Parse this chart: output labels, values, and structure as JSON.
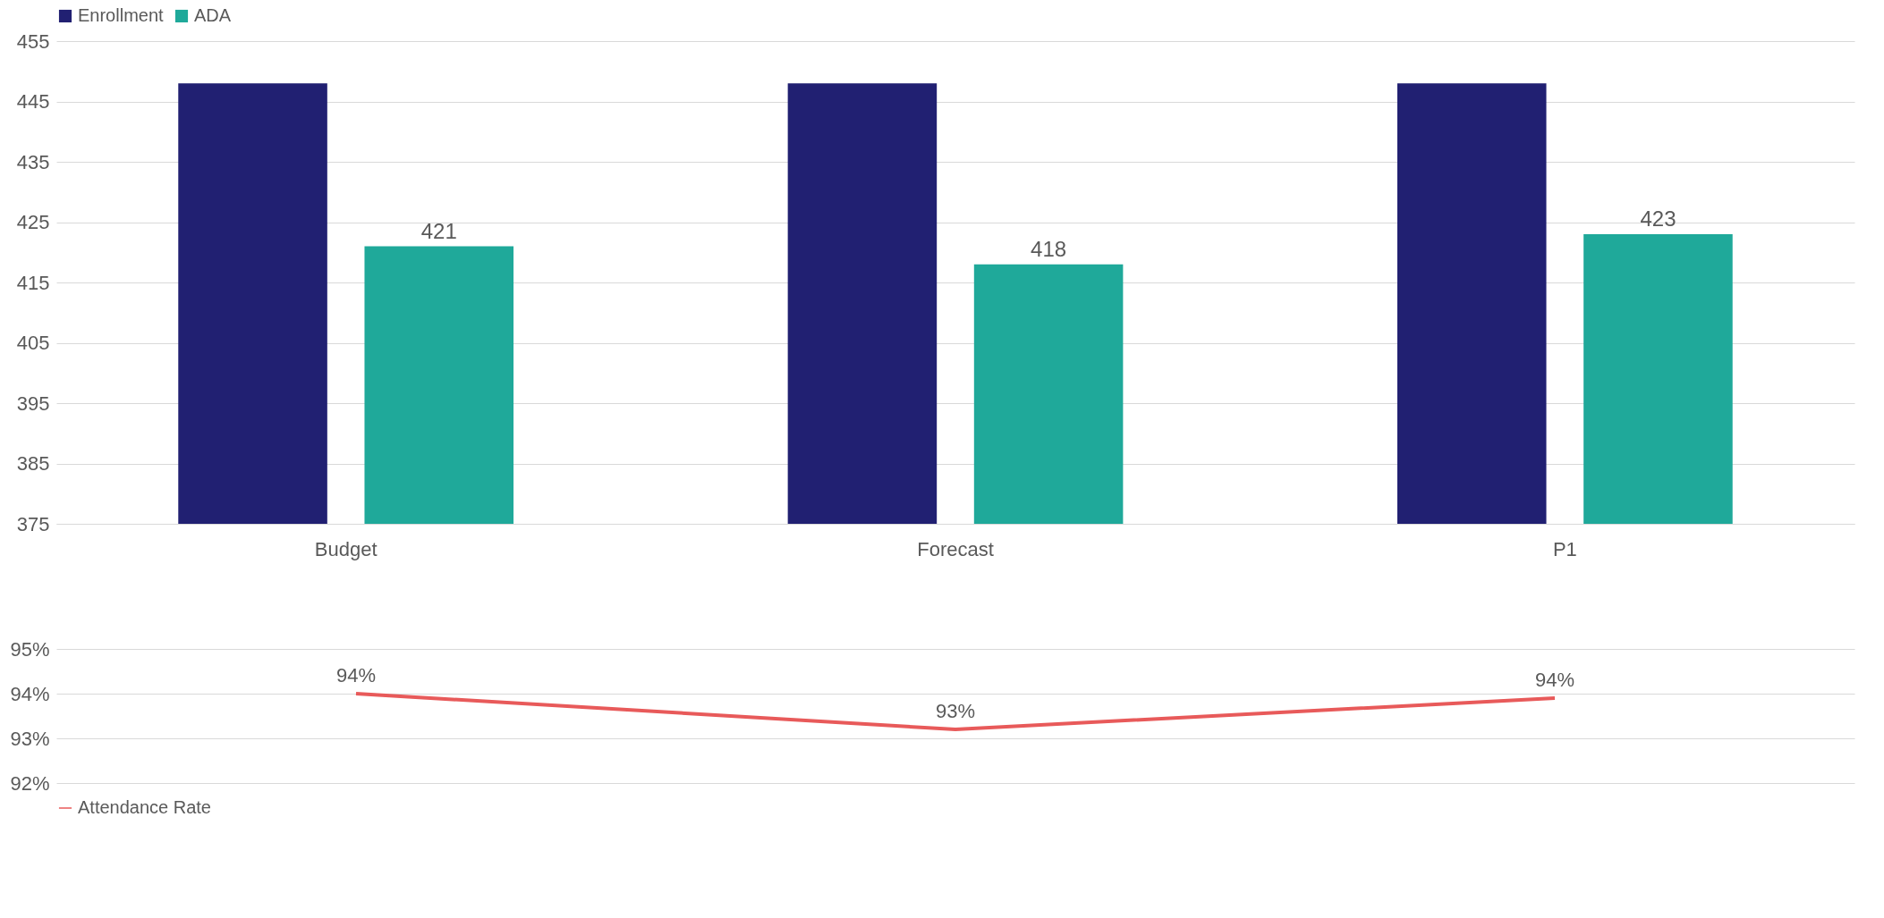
{
  "chart_data": [
    {
      "type": "bar",
      "categories": [
        "Budget",
        "Forecast",
        "P1"
      ],
      "ylim": [
        375,
        455
      ],
      "yticks": [
        375,
        385,
        395,
        405,
        415,
        425,
        435,
        445,
        455
      ],
      "grid": "y",
      "legend": "top",
      "series": [
        {
          "name": "Enrollment",
          "color": "#212072",
          "values": [
            448,
            448,
            448
          ]
        },
        {
          "name": "ADA",
          "color": "#1fa99a",
          "values": [
            421,
            418,
            423
          ],
          "value_labels": [
            "421",
            "418",
            "423"
          ]
        }
      ]
    },
    {
      "type": "line",
      "categories": [
        null,
        null,
        null
      ],
      "ylim": [
        92,
        95
      ],
      "yticks": [
        {
          "value": 92,
          "label": "92%"
        },
        {
          "value": 93,
          "label": "93%"
        },
        {
          "value": 94,
          "label": "94%"
        },
        {
          "value": 95,
          "label": "95%"
        }
      ],
      "grid": "y",
      "legend": "bottom",
      "tick_labels": "y",
      "series": [
        {
          "name": "Attendance Rate",
          "color": "#e85a5a",
          "values": [
            94.0,
            93.2,
            93.9
          ],
          "value_labels": [
            "94%",
            "93%",
            "94%"
          ]
        }
      ]
    }
  ]
}
